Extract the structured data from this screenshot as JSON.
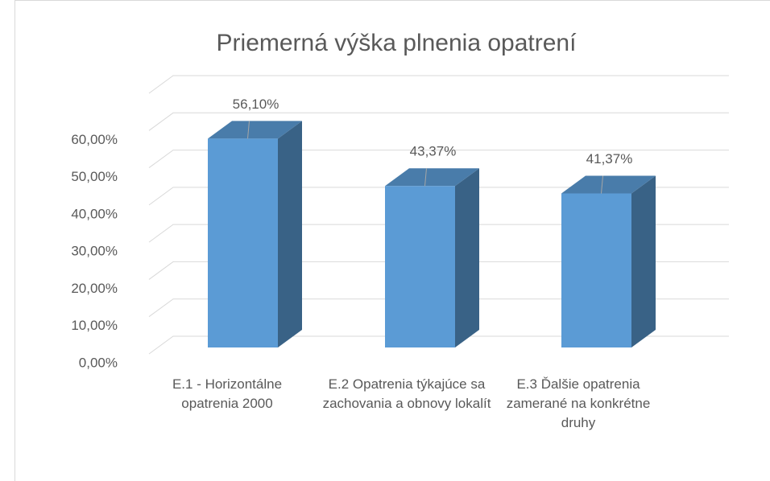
{
  "chart_data": {
    "type": "bar3d",
    "title": "Priemerná výška plnenia opatrení",
    "categories": [
      "E.1 - Horizontálne opatrenia 2000",
      "E.2 Opatrenia týkajúce sa zachovania a obnovy lokalít",
      "E.3 Ďalšie opatrenia zamerané na konkrétne druhy"
    ],
    "values": [
      56.1,
      43.37,
      41.37
    ],
    "value_labels": [
      "56,10%",
      "43,37%",
      "41,37%"
    ],
    "color": "#5b9bd5",
    "ylim": [
      0,
      70
    ],
    "yticks": [
      {
        "value": 0,
        "label": "0,00%"
      },
      {
        "value": 10,
        "label": "10,00%"
      },
      {
        "value": 20,
        "label": "20,00%"
      },
      {
        "value": 30,
        "label": "30,00%"
      },
      {
        "value": 40,
        "label": "40,00%"
      },
      {
        "value": 50,
        "label": "50,00%"
      },
      {
        "value": 60,
        "label": "60,00%"
      }
    ],
    "grid": true
  }
}
